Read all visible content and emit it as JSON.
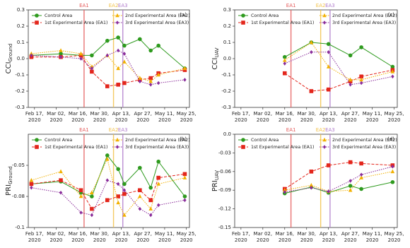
{
  "chart_data": [
    {
      "type": "line",
      "panel_label": "(a)",
      "ylabel": "CCI",
      "ylabel_sub": "Ground",
      "legend": "upper left",
      "x": [
        "2020-02-15",
        "2020-03-05",
        "2020-03-18",
        "2020-03-25",
        "2020-04-04",
        "2020-04-11",
        "2020-04-15",
        "2020-04-25",
        "2020-05-02",
        "2020-05-07",
        "2020-05-24"
      ],
      "series": [
        {
          "name": "Control Area",
          "color": "#2e9a1e",
          "marker": "circle",
          "linestyle": "solid",
          "values": [
            0.02,
            0.03,
            0.02,
            0.02,
            0.11,
            0.13,
            0.08,
            0.12,
            0.05,
            0.08,
            -0.06
          ]
        },
        {
          "name": "1st Experimental Area (EA1)",
          "color": "#e3261c",
          "marker": "square",
          "linestyle": "dashed",
          "values": [
            0.01,
            0.01,
            0.02,
            -0.08,
            -0.17,
            -0.16,
            -0.15,
            -0.13,
            -0.12,
            -0.09,
            -0.07
          ]
        },
        {
          "name": "2nd Experimental Area (EA2)",
          "color": "#f2b000",
          "marker": "triangle",
          "linestyle": "dotted",
          "values": [
            0.03,
            0.05,
            0.03,
            -0.05,
            0.02,
            -0.06,
            -0.02,
            -0.12,
            -0.14,
            -0.1,
            -0.06
          ]
        },
        {
          "name": "3rd Experimental Area (EA3)",
          "color": "#8a2c9a",
          "marker": "diamond",
          "linestyle": "dotted",
          "values": [
            0.02,
            0.01,
            0.0,
            -0.06,
            0.02,
            0.05,
            0.03,
            -0.14,
            -0.16,
            -0.15,
            -0.13
          ]
        }
      ],
      "events": [
        {
          "label": "EA1",
          "x": "2020-03-20",
          "color": "#e45b5b"
        },
        {
          "label": "EA2",
          "x": "2020-04-08",
          "color": "#f2c24a"
        },
        {
          "label": "EA3",
          "x": "2020-04-14",
          "color": "#b07ccc"
        }
      ],
      "xlim": [
        "2020-02-13",
        "2020-05-27"
      ],
      "xticks": [
        {
          "value": "2020-02-17",
          "label": "Feb 17, 2020"
        },
        {
          "value": "2020-03-02",
          "label": "Mar 02, 2020"
        },
        {
          "value": "2020-03-16",
          "label": "Mar 16, 2020"
        },
        {
          "value": "2020-03-30",
          "label": "Mar 30, 2020"
        },
        {
          "value": "2020-04-13",
          "label": "Apr 13, 2020"
        },
        {
          "value": "2020-04-27",
          "label": "Apr 27, 2020"
        },
        {
          "value": "2020-05-11",
          "label": "May 11, 2020"
        },
        {
          "value": "2020-05-25",
          "label": "May 25, 2020"
        }
      ],
      "ylim": [
        -0.3,
        0.3
      ],
      "yticks": [
        -0.3,
        -0.2,
        -0.1,
        {
          "value": 0,
          "label": "0.0"
        },
        0.1,
        0.2,
        0.3
      ]
    },
    {
      "type": "line",
      "panel_label": "(b)",
      "ylabel": "PRI",
      "ylabel_sub": "Ground",
      "legend": "upper left",
      "x": [
        "2020-02-15",
        "2020-03-05",
        "2020-03-18",
        "2020-03-25",
        "2020-04-04",
        "2020-04-11",
        "2020-04-15",
        "2020-04-25",
        "2020-05-02",
        "2020-05-07",
        "2020-05-24"
      ],
      "series": [
        {
          "name": "Control Area",
          "color": "#2e9a1e",
          "marker": "circle",
          "linestyle": "solid",
          "values": [
            -0.065,
            -0.063,
            -0.072,
            -0.075,
            -0.042,
            -0.053,
            -0.065,
            -0.052,
            -0.068,
            -0.047,
            -0.075
          ]
        },
        {
          "name": "1st Experimental Area (EA1)",
          "color": "#e3261c",
          "marker": "square",
          "linestyle": "dashed",
          "values": [
            -0.065,
            -0.062,
            -0.07,
            -0.085,
            -0.078,
            -0.075,
            -0.073,
            -0.07,
            -0.078,
            -0.06,
            -0.057
          ]
        },
        {
          "name": "2nd Experimental Area (EA2)",
          "color": "#f2b000",
          "marker": "triangle",
          "linestyle": "dotted",
          "values": [
            -0.062,
            -0.055,
            -0.075,
            -0.072,
            -0.045,
            -0.08,
            -0.09,
            -0.075,
            -0.085,
            -0.065,
            -0.06
          ]
        },
        {
          "name": "3rd Experimental Area (EA3)",
          "color": "#8a2c9a",
          "marker": "diamond",
          "linestyle": "dotted",
          "values": [
            -0.068,
            -0.072,
            -0.088,
            -0.09,
            -0.062,
            -0.065,
            -0.07,
            -0.085,
            -0.09,
            -0.082,
            -0.078
          ]
        }
      ],
      "events": [
        {
          "label": "EA1",
          "x": "2020-03-20",
          "color": "#e45b5b"
        },
        {
          "label": "EA2",
          "x": "2020-04-08",
          "color": "#f2c24a"
        },
        {
          "label": "EA3",
          "x": "2020-04-14",
          "color": "#b07ccc"
        }
      ],
      "xlim": [
        "2020-02-13",
        "2020-05-27"
      ],
      "xticks": [
        {
          "value": "2020-02-17",
          "label": "Feb 17, 2020"
        },
        {
          "value": "2020-03-02",
          "label": "Mar 02, 2020"
        },
        {
          "value": "2020-03-16",
          "label": "Mar 16, 2020"
        },
        {
          "value": "2020-03-30",
          "label": "Mar 30, 2020"
        },
        {
          "value": "2020-04-13",
          "label": "Apr 13, 2020"
        },
        {
          "value": "2020-04-27",
          "label": "Apr 27, 2020"
        },
        {
          "value": "2020-05-11",
          "label": "May 11, 2020"
        },
        {
          "value": "2020-05-25",
          "label": "May 25, 2020"
        }
      ],
      "ylim": [
        -0.1,
        -0.025
      ],
      "yticks": [
        -0.1,
        {
          "value": -0.075,
          "label": "-0.08"
        },
        -0.05
      ]
    },
    {
      "type": "line",
      "panel_label": "(c)",
      "ylabel": "CCI",
      "ylabel_sub": "UAV",
      "legend": "upper left",
      "x": [
        "2020-03-16",
        "2020-04-02",
        "2020-04-13",
        "2020-04-27",
        "2020-05-04",
        "2020-05-24"
      ],
      "series": [
        {
          "name": "Control Area",
          "color": "#2e9a1e",
          "marker": "circle",
          "linestyle": "solid",
          "values": [
            0.01,
            0.1,
            0.09,
            0.02,
            0.07,
            -0.05
          ]
        },
        {
          "name": "1st Experimental Area (EA1)",
          "color": "#e3261c",
          "marker": "square",
          "linestyle": "dashed",
          "values": [
            -0.09,
            -0.2,
            -0.19,
            -0.14,
            -0.11,
            -0.07
          ]
        },
        {
          "name": "2nd Experimental Area (EA2)",
          "color": "#f2b000",
          "marker": "triangle",
          "linestyle": "dotted",
          "values": [
            -0.01,
            0.1,
            -0.05,
            -0.13,
            -0.13,
            -0.08
          ]
        },
        {
          "name": "3rd Experimental Area (EA3)",
          "color": "#8a2c9a",
          "marker": "diamond",
          "linestyle": "dotted",
          "values": [
            -0.03,
            0.04,
            0.04,
            -0.16,
            -0.15,
            -0.11
          ]
        }
      ],
      "events": [
        {
          "label": "EA1",
          "x": "2020-03-20",
          "color": "#e45b5b"
        },
        {
          "label": "EA2",
          "x": "2020-04-08",
          "color": "#f2c24a"
        },
        {
          "label": "EA3",
          "x": "2020-04-14",
          "color": "#b07ccc"
        }
      ],
      "xlim": [
        "2020-02-13",
        "2020-05-27"
      ],
      "xticks": [
        {
          "value": "2020-02-17",
          "label": "Feb 17, 2020"
        },
        {
          "value": "2020-03-02",
          "label": "Mar 02, 2020"
        },
        {
          "value": "2020-03-16",
          "label": "Mar 16, 2020"
        },
        {
          "value": "2020-03-30",
          "label": "Mar 30, 2020"
        },
        {
          "value": "2020-04-13",
          "label": "Apr 13, 2020"
        },
        {
          "value": "2020-04-27",
          "label": "Apr 27, 2020"
        },
        {
          "value": "2020-05-11",
          "label": "May 11, 2020"
        },
        {
          "value": "2020-05-25",
          "label": "May 25, 2020"
        }
      ],
      "ylim": [
        -0.3,
        0.3
      ],
      "yticks": [
        -0.3,
        -0.2,
        -0.1,
        {
          "value": 0,
          "label": "0.0"
        },
        0.1,
        0.2,
        0.3
      ]
    },
    {
      "type": "line",
      "panel_label": "(d)",
      "ylabel": "PRI",
      "ylabel_sub": "UAV",
      "legend": "upper left",
      "x": [
        "2020-03-16",
        "2020-04-02",
        "2020-04-13",
        "2020-04-27",
        "2020-05-04",
        "2020-05-24"
      ],
      "series": [
        {
          "name": "Control Area",
          "color": "#2e9a1e",
          "marker": "circle",
          "linestyle": "solid",
          "values": [
            -0.095,
            -0.085,
            -0.094,
            -0.083,
            -0.088,
            -0.077
          ]
        },
        {
          "name": "1st Experimental Area (EA1)",
          "color": "#e3261c",
          "marker": "square",
          "linestyle": "dashed",
          "values": [
            -0.088,
            -0.06,
            -0.05,
            -0.045,
            -0.047,
            -0.05
          ]
        },
        {
          "name": "2nd Experimental Area (EA2)",
          "color": "#f2b000",
          "marker": "triangle",
          "linestyle": "dotted",
          "values": [
            -0.09,
            -0.082,
            -0.092,
            -0.09,
            -0.07,
            -0.06
          ]
        },
        {
          "name": "3rd Experimental Area (EA3)",
          "color": "#8a2c9a",
          "marker": "diamond",
          "linestyle": "dotted",
          "values": [
            -0.093,
            -0.086,
            -0.092,
            -0.075,
            -0.065,
            -0.052
          ]
        }
      ],
      "events": [
        {
          "label": "EA1",
          "x": "2020-03-20",
          "color": "#e45b5b"
        },
        {
          "label": "EA2",
          "x": "2020-04-08",
          "color": "#f2c24a"
        },
        {
          "label": "EA3",
          "x": "2020-04-14",
          "color": "#b07ccc"
        }
      ],
      "xlim": [
        "2020-02-13",
        "2020-05-27"
      ],
      "xticks": [
        {
          "value": "2020-02-17",
          "label": "Feb 17, 2020"
        },
        {
          "value": "2020-03-02",
          "label": "Mar 02, 2020"
        },
        {
          "value": "2020-03-16",
          "label": "Mar 16, 2020"
        },
        {
          "value": "2020-03-30",
          "label": "Mar 30, 2020"
        },
        {
          "value": "2020-04-13",
          "label": "Apr 13, 2020"
        },
        {
          "value": "2020-04-27",
          "label": "Apr 27, 2020"
        },
        {
          "value": "2020-05-11",
          "label": "May 11, 2020"
        },
        {
          "value": "2020-05-25",
          "label": "May 25, 2020"
        }
      ],
      "ylim": [
        -0.15,
        0
      ],
      "yticks": [
        -0.15,
        -0.12,
        -0.09,
        -0.06,
        -0.03,
        {
          "value": 0,
          "label": "0.0"
        }
      ]
    }
  ]
}
